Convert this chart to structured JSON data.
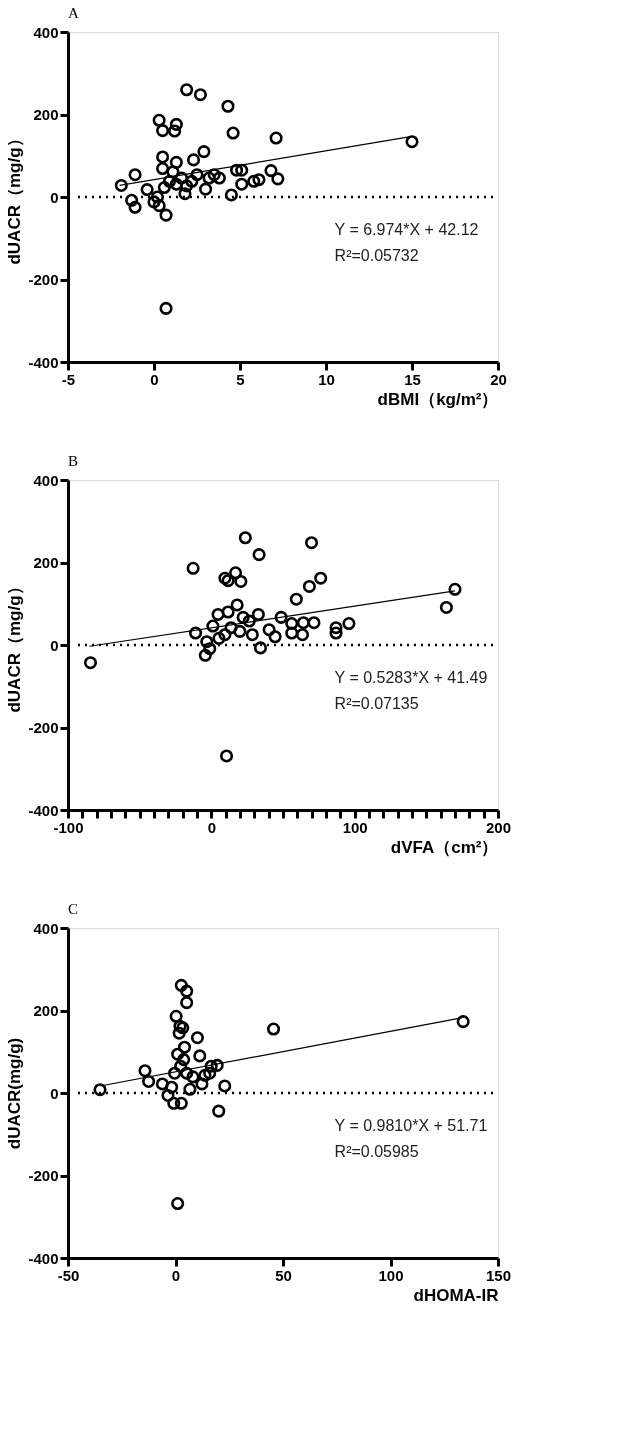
{
  "chart_data": [
    {
      "type": "scatter",
      "title": "A",
      "xlabel": "dBMI（kg/m²）",
      "ylabel": "dUACR（mg/g）",
      "xlim": [
        -5,
        20
      ],
      "ylim": [
        -400,
        400
      ],
      "xticks": [
        -5,
        0,
        5,
        10,
        15,
        20
      ],
      "yticks": [
        -400,
        -200,
        0,
        200,
        400
      ],
      "grid": false,
      "series": [
        {
          "type": "scatter",
          "marker": "circle",
          "color": "#000000",
          "x": [
            1.9,
            2.7,
            4.3,
            0.3,
            1.3,
            1.2,
            0.5,
            4.6,
            7.1,
            15,
            2.9,
            0.5,
            2.3,
            1.3,
            0.5,
            -1.1,
            4.8,
            5.1,
            6.8,
            3.5,
            3.8,
            7.2,
            6.1,
            5.8,
            5.1,
            3.0,
            1.9,
            -1.9,
            -0.4,
            0.9,
            1.6,
            2.5,
            1.8,
            4.5,
            0.2,
            -1.3,
            0.0,
            -1.1,
            0.3,
            0.7,
            0.7,
            1.1,
            1.3,
            0.6,
            2.2,
            3.2
          ],
          "values": [
            260,
            248,
            220,
            186,
            176,
            160,
            161,
            155,
            143,
            134,
            110,
            97,
            90,
            84,
            69,
            54,
            65,
            65,
            64,
            54,
            46,
            44,
            42,
            38,
            31,
            19,
            27,
            28,
            18,
            38,
            46,
            54,
            8,
            5,
            0,
            -8,
            -12,
            -25,
            -21,
            -44,
            -270,
            61,
            31,
            23,
            38,
            46
          ]
        },
        {
          "type": "line",
          "marker": "none",
          "line_style": "solid",
          "color": "#000000",
          "x": [
            -2,
            15
          ],
          "values": [
            28,
            147
          ]
        }
      ],
      "ref_lines": [
        {
          "axis": "y",
          "value": 0,
          "line_style": "dotted"
        }
      ],
      "annotations": [
        "Y = 6.974*X + 42.12",
        "R²=0.05732"
      ]
    },
    {
      "type": "scatter",
      "title": "B",
      "xlabel": "dVFA（cm²）",
      "ylabel": "dUACR（mg/g）",
      "xlim": [
        -100,
        200
      ],
      "ylim": [
        -400,
        400
      ],
      "xticks": [
        -100,
        {
          "value": -90,
          "label": null
        },
        {
          "value": -80,
          "label": null
        },
        {
          "value": -70,
          "label": null
        },
        {
          "value": -60,
          "label": null
        },
        {
          "value": -50,
          "label": null
        },
        {
          "value": -40,
          "label": null
        },
        {
          "value": -30,
          "label": null
        },
        {
          "value": -20,
          "label": null
        },
        {
          "value": -10,
          "label": null
        },
        0,
        {
          "value": 10,
          "label": null
        },
        {
          "value": 20,
          "label": null
        },
        {
          "value": 30,
          "label": null
        },
        {
          "value": 40,
          "label": null
        },
        {
          "value": 50,
          "label": null
        },
        {
          "value": 60,
          "label": null
        },
        {
          "value": 70,
          "label": null
        },
        {
          "value": 80,
          "label": null
        },
        {
          "value": 90,
          "label": null
        },
        100,
        {
          "value": 110,
          "label": null
        },
        {
          "value": 120,
          "label": null
        },
        {
          "value": 130,
          "label": null
        },
        {
          "value": 140,
          "label": null
        },
        {
          "value": 150,
          "label": null
        },
        {
          "value": 160,
          "label": null
        },
        {
          "value": 170,
          "label": null
        },
        {
          "value": 180,
          "label": null
        },
        {
          "value": 190,
          "label": null
        },
        200
      ],
      "yticks": [
        -400,
        -200,
        0,
        200,
        400
      ],
      "grid": false,
      "series": [
        {
          "type": "scatter",
          "marker": "circle",
          "color": "#000000",
          "x": [
            -84.3,
            -12.7,
            23.7,
            33.3,
            69.9,
            76.3,
            68.4,
            59.3,
            9.5,
            11.7,
            16.9,
            20.6,
            170,
            164,
            96,
            87,
            87,
            71.6,
            64.2,
            63.6,
            56.1,
            56.1,
            48.7,
            44.5,
            40.3,
            32.8,
            34.3,
            28.6,
            18.0,
            11.7,
            4.7,
            -11,
            -4.2,
            -1.1,
            1.1,
            10.6,
            9.5,
            13.8,
            22.2,
            5.3,
            19.9,
            26.5,
            -3.2
          ],
          "values": [
            -43,
            186,
            260,
            219,
            248,
            162,
            142,
            111,
            162,
            156,
            175,
            154,
            135,
            91,
            52,
            42,
            29,
            54,
            54,
            25,
            29,
            52,
            67,
            20,
            37,
            74,
            -7,
            25,
            97,
            80,
            74,
            29,
            -25,
            -9,
            46,
            -269,
            25,
            42,
            67,
            16,
            33,
            58,
            8
          ]
        },
        {
          "type": "line",
          "marker": "none",
          "line_style": "solid",
          "color": "#000000",
          "x": [
            -85,
            170
          ],
          "values": [
            -3,
            131
          ]
        }
      ],
      "ref_lines": [
        {
          "axis": "y",
          "value": 0,
          "line_style": "dotted"
        }
      ],
      "annotations": [
        "Y = 0.5283*X + 41.49",
        "R²=0.07135"
      ]
    },
    {
      "type": "scatter",
      "title": "C",
      "xlabel": "dHOMA-IR",
      "ylabel": "dUACR(mg/g)",
      "xlim": [
        -50,
        150
      ],
      "ylim": [
        -400,
        400
      ],
      "xticks": [
        -50,
        0,
        50,
        100,
        150
      ],
      "yticks": [
        -400,
        -200,
        0,
        200,
        400
      ],
      "grid": false,
      "series": [
        {
          "type": "scatter",
          "marker": "circle",
          "color": "#000000",
          "x": [
            -35.1,
            133.8,
            45.6,
            2.7,
            5.2,
            5.2,
            0.3,
            2.1,
            3.4,
            1.7,
            10.2,
            4.2,
            11.3,
            1.0,
            -14.2,
            -12.5,
            -6.1,
            19.4,
            16.6,
            15.9,
            22.9,
            12.3,
            20.1,
            1.0,
            -3.5,
            -0.8,
            2.7,
            6.7,
            2.4,
            -0.4,
            5.2,
            3.8,
            8.1,
            -1.8,
            13.7
          ],
          "values": [
            8,
            173,
            155,
            261,
            247,
            219,
            186,
            162,
            158,
            145,
            134,
            111,
            90,
            94,
            54,
            28,
            22,
            67,
            65,
            48,
            17,
            22,
            -44,
            -268,
            -6,
            -25,
            -25,
            9,
            65,
            48,
            48,
            81,
            39,
            14,
            43
          ]
        },
        {
          "type": "line",
          "marker": "none",
          "line_style": "solid",
          "color": "#000000",
          "x": [
            -35,
            133
          ],
          "values": [
            17,
            182
          ]
        }
      ],
      "ref_lines": [
        {
          "axis": "y",
          "value": 0,
          "line_style": "dotted"
        }
      ],
      "annotations": [
        "Y = 0.9810*X + 51.71",
        "R²=0.05985"
      ]
    }
  ]
}
